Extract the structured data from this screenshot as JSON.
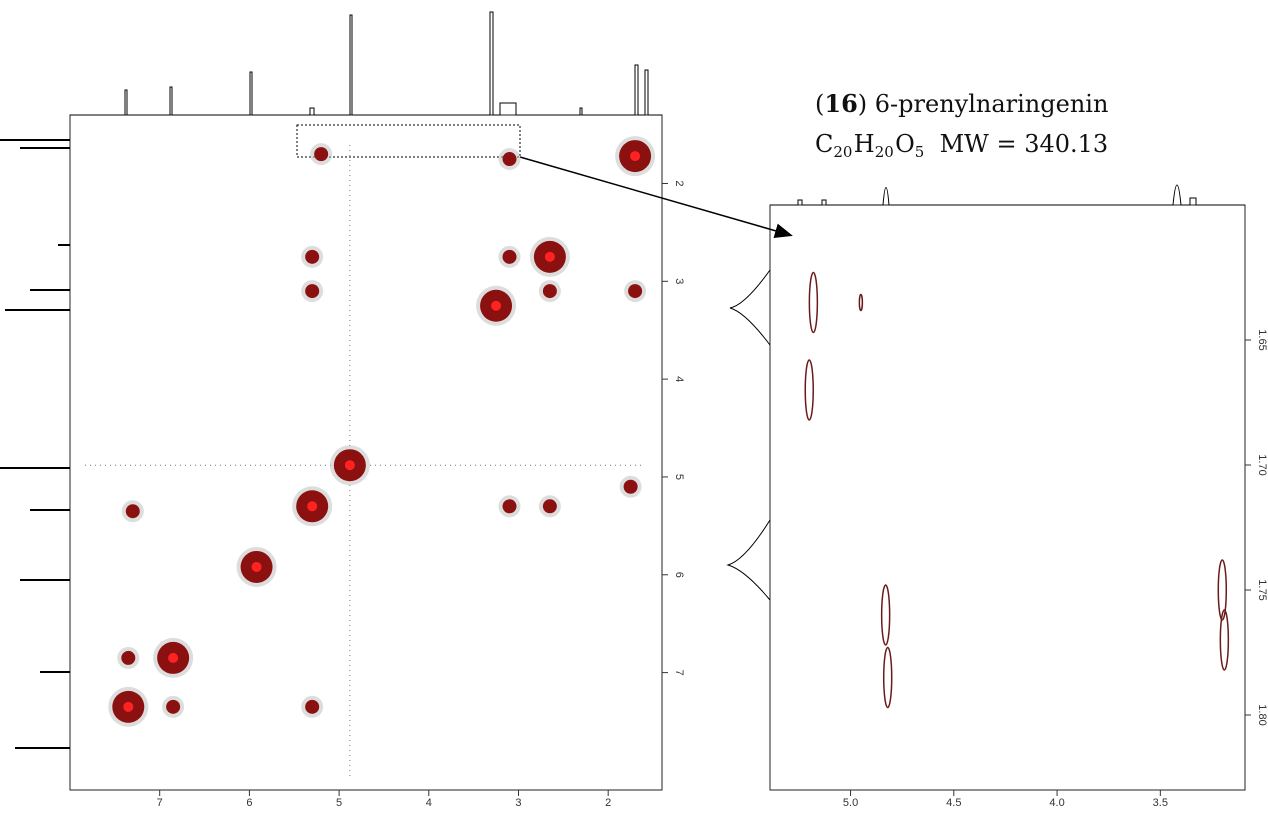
{
  "chart_data": [
    {
      "type": "nmr2d",
      "xlim": [
        8.0,
        1.4
      ],
      "ylim": [
        1.3,
        8.2
      ],
      "xticks": [
        7,
        6,
        5,
        4,
        3,
        2
      ],
      "yticks": [
        2,
        3,
        4,
        5,
        6,
        7
      ],
      "color": "#8b1010",
      "x": [
        1.7,
        2.65,
        3.25,
        4.88,
        5.3,
        5.92,
        6.85,
        7.35,
        3.1,
        2.65,
        5.3,
        5.3,
        3.1,
        2.65,
        7.35,
        6.85,
        5.2,
        3.1,
        1.7,
        1.75,
        7.3,
        5.3
      ],
      "y": [
        1.72,
        2.75,
        3.25,
        4.88,
        5.3,
        5.92,
        6.85,
        7.35,
        2.75,
        3.1,
        2.75,
        3.1,
        5.3,
        5.3,
        6.85,
        7.35,
        1.7,
        1.75,
        3.1,
        5.1,
        5.35,
        7.35
      ]
    },
    {
      "type": "nmr2d",
      "xlim": [
        5.39,
        3.09
      ],
      "ylim": [
        1.596,
        1.83
      ],
      "xticks": [
        {
          "value": 5,
          "label": "5.0"
        },
        4.5,
        {
          "value": 4,
          "label": "4.0"
        },
        3.5
      ],
      "yticks": [
        1.65,
        {
          "value": 1.7,
          "label": "1.70"
        },
        1.75,
        {
          "value": 1.8,
          "label": "1.80"
        }
      ],
      "color": "#6b1a1a",
      "x": [
        5.18,
        5.2,
        4.95,
        4.83,
        4.82,
        3.2,
        3.19
      ],
      "y": [
        1.635,
        1.67,
        1.635,
        1.76,
        1.785,
        1.75,
        1.77
      ],
      "annotation": {
        "name_line": [
          "(",
          "16",
          ") 6-prenylnaringenin"
        ],
        "formula": [
          [
            "C",
            "20"
          ],
          [
            "H",
            "20"
          ],
          [
            "O",
            "5"
          ]
        ],
        "mw": "MW = 340.13"
      }
    }
  ]
}
